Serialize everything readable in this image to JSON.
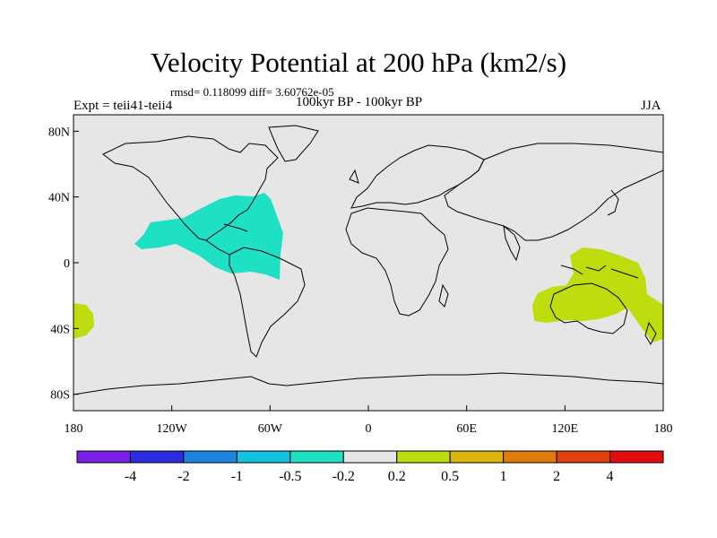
{
  "title": "Velocity Potential at 200 hPa (km2/s)",
  "stats": "rmsd= 0.118099 diff= 3.60762e-05",
  "experiment": "Expt = teii41-teii4",
  "period": "100kyr BP - 100kyr BP",
  "season": "JJA",
  "map": {
    "projection": "cylindrical equidistant",
    "lon_range": [
      -180,
      180
    ],
    "lat_range": [
      -90,
      90
    ],
    "ocean_color": "#e6e6e6",
    "lat_ticks": [
      {
        "lat": 80,
        "label": "80N"
      },
      {
        "lat": 40,
        "label": "40N"
      },
      {
        "lat": 0,
        "label": "0"
      },
      {
        "lat": -40,
        "label": "40S"
      },
      {
        "lat": -80,
        "label": "80S"
      }
    ],
    "lon_ticks": [
      {
        "lon": -180,
        "label": "180"
      },
      {
        "lon": -120,
        "label": "120W"
      },
      {
        "lon": -60,
        "label": "60W"
      },
      {
        "lon": 0,
        "label": "0"
      },
      {
        "lon": 60,
        "label": "60E"
      },
      {
        "lon": 120,
        "label": "120E"
      },
      {
        "lon": 180,
        "label": "180"
      }
    ],
    "anomalies": [
      {
        "region": "tropical-atlantic-americas",
        "range": "-0.5 to -0.2",
        "color": "#1ee0c4"
      },
      {
        "region": "maritime-continent-australia",
        "range": "0.2 to 0.5",
        "color": "#bfdc0e"
      },
      {
        "region": "southern-pacific-edge",
        "range": "0.2 to 0.5",
        "color": "#bfdc0e"
      }
    ]
  },
  "colorbar": {
    "colors": [
      "#7a1fe6",
      "#2d2de0",
      "#1e84e0",
      "#15c0e0",
      "#1ee0c4",
      "#e6e6e6",
      "#bfdc0e",
      "#dcb20e",
      "#e07c0e",
      "#e0400e",
      "#e00e0e"
    ],
    "labels": [
      "-4",
      "-2",
      "-1",
      "-0.5",
      "-0.2",
      "0.2",
      "0.5",
      "1",
      "2",
      "4"
    ]
  }
}
